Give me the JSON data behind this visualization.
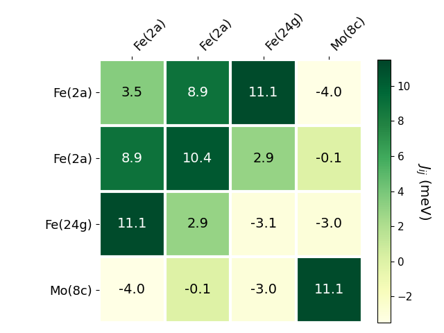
{
  "matrix": [
    [
      3.5,
      8.9,
      11.1,
      -4.0
    ],
    [
      8.9,
      10.4,
      2.9,
      -0.1
    ],
    [
      11.1,
      2.9,
      -3.1,
      -3.0
    ],
    [
      -4.0,
      -0.1,
      -3.0,
      11.1
    ]
  ],
  "row_labels": [
    "Fe(2a)",
    "Fe(2a)",
    "Fe(24g)",
    "Mo(8c)"
  ],
  "col_labels": [
    "Fe(2a)",
    "Fe(2a)",
    "Fe(24g)",
    "Mo(8c)"
  ],
  "colorbar_label": "$J_{ij}$ (meV)",
  "vmin": -3.5,
  "vmax": 11.5,
  "cmap": "YlGn",
  "figsize": [
    6.4,
    4.8
  ],
  "dpi": 100,
  "text_color_dark": "white",
  "text_color_light": "black",
  "text_threshold": 0.5,
  "fontsize_cells": 14,
  "fontsize_labels": 13,
  "fontsize_colorbar": 14,
  "colorbar_ticks": [
    -2,
    0,
    2,
    4,
    6,
    8,
    10
  ],
  "linewidth": 3,
  "linecolor": "white"
}
